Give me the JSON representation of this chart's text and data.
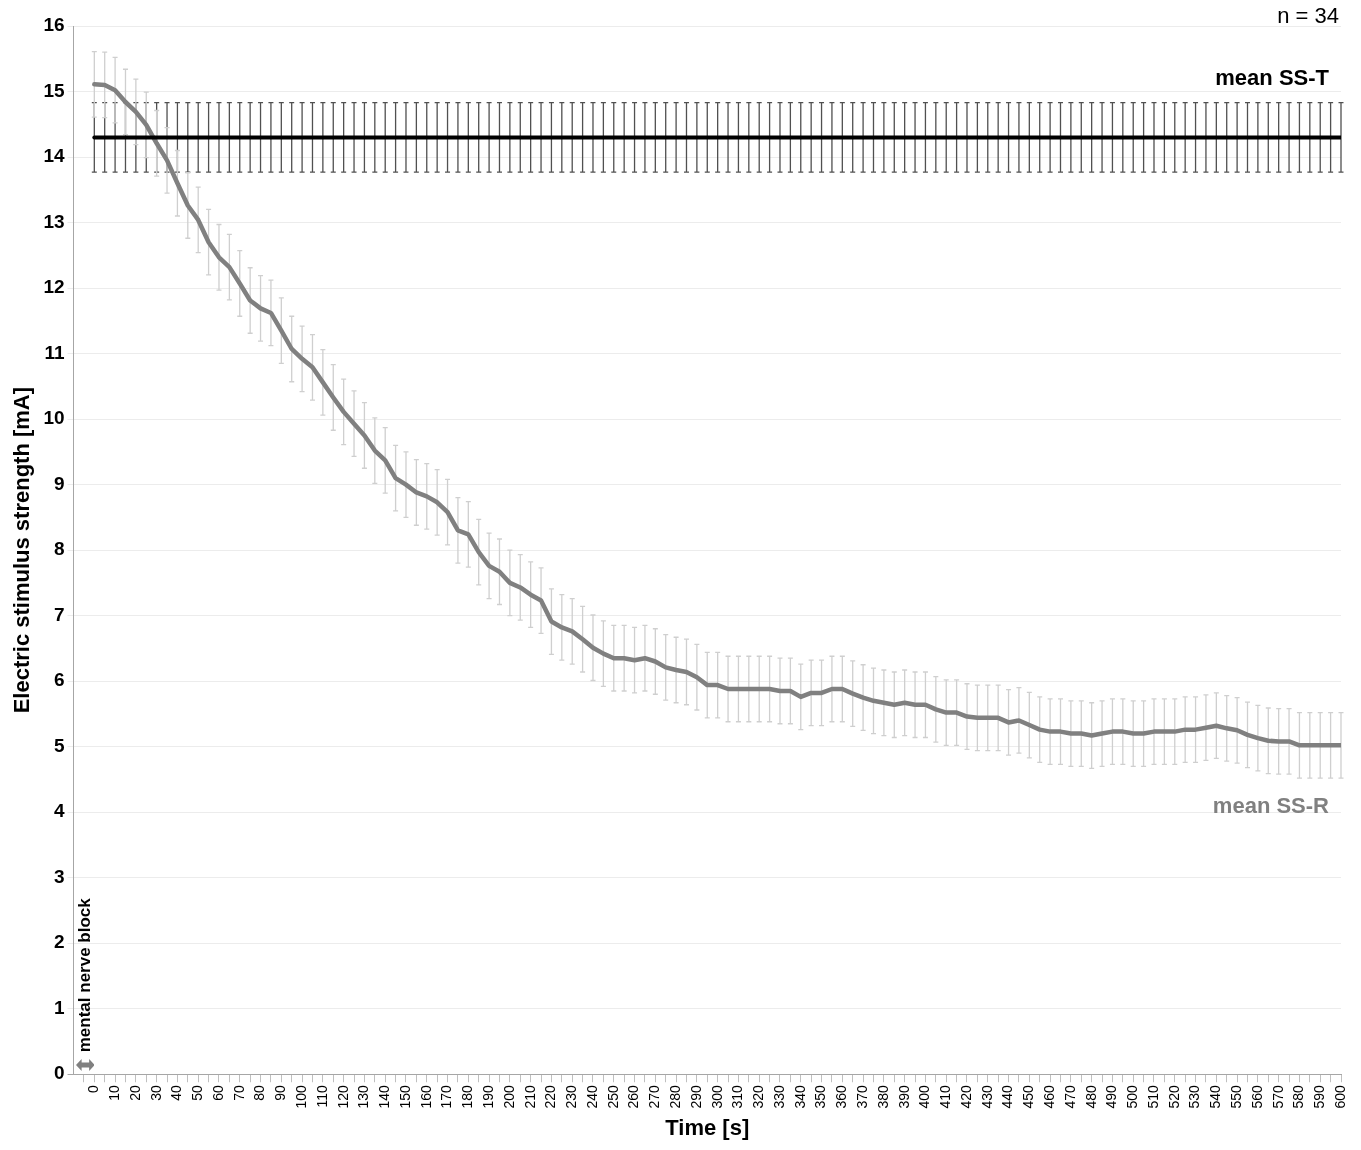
{
  "chart_data": {
    "type": "line",
    "xlabel": "Time [s]",
    "ylabel": "Electric stimulus strength [mA]",
    "annotations": [
      "n = 34",
      "mental nerve block"
    ],
    "x": [
      0,
      5,
      10,
      15,
      20,
      25,
      30,
      35,
      40,
      45,
      50,
      55,
      60,
      65,
      70,
      75,
      80,
      85,
      90,
      95,
      100,
      105,
      110,
      115,
      120,
      125,
      130,
      135,
      140,
      145,
      150,
      155,
      160,
      165,
      170,
      175,
      180,
      185,
      190,
      195,
      200,
      205,
      210,
      215,
      220,
      225,
      230,
      235,
      240,
      245,
      250,
      255,
      260,
      265,
      270,
      275,
      280,
      285,
      290,
      295,
      300,
      305,
      310,
      315,
      320,
      325,
      330,
      335,
      340,
      345,
      350,
      355,
      360,
      365,
      370,
      375,
      380,
      385,
      390,
      395,
      400,
      405,
      410,
      415,
      420,
      425,
      430,
      435,
      440,
      445,
      450,
      455,
      460,
      465,
      470,
      475,
      480,
      485,
      490,
      495,
      500,
      505,
      510,
      515,
      520,
      525,
      530,
      535,
      540,
      545,
      550,
      555,
      560,
      565,
      570,
      575,
      580,
      585,
      590,
      595,
      600
    ],
    "series": [
      {
        "name": "mean SS-T",
        "color": "#000000",
        "values": [
          14.3,
          14.3,
          14.3,
          14.3,
          14.3,
          14.3,
          14.3,
          14.3,
          14.3,
          14.3,
          14.3,
          14.3,
          14.3,
          14.3,
          14.3,
          14.3,
          14.3,
          14.3,
          14.3,
          14.3,
          14.3,
          14.3,
          14.3,
          14.3,
          14.3,
          14.3,
          14.3,
          14.3,
          14.3,
          14.3,
          14.3,
          14.3,
          14.3,
          14.3,
          14.3,
          14.3,
          14.3,
          14.3,
          14.3,
          14.3,
          14.3,
          14.3,
          14.3,
          14.3,
          14.3,
          14.3,
          14.3,
          14.3,
          14.3,
          14.3,
          14.3,
          14.3,
          14.3,
          14.3,
          14.3,
          14.3,
          14.3,
          14.3,
          14.3,
          14.3,
          14.3,
          14.3,
          14.3,
          14.3,
          14.3,
          14.3,
          14.3,
          14.3,
          14.3,
          14.3,
          14.3,
          14.3,
          14.3,
          14.3,
          14.3,
          14.3,
          14.3,
          14.3,
          14.3,
          14.3,
          14.3,
          14.3,
          14.3,
          14.3,
          14.3,
          14.3,
          14.3,
          14.3,
          14.3,
          14.3,
          14.3,
          14.3,
          14.3,
          14.3,
          14.3,
          14.3,
          14.3,
          14.3,
          14.3,
          14.3,
          14.3,
          14.3,
          14.3,
          14.3,
          14.3,
          14.3,
          14.3,
          14.3,
          14.3,
          14.3,
          14.3,
          14.3,
          14.3,
          14.3,
          14.3,
          14.3,
          14.3,
          14.3,
          14.3,
          14.3,
          14.3
        ],
        "errors": [
          0.53,
          0.53,
          0.53,
          0.53,
          0.53,
          0.53,
          0.53,
          0.53,
          0.53,
          0.53,
          0.53,
          0.53,
          0.53,
          0.53,
          0.53,
          0.53,
          0.53,
          0.53,
          0.53,
          0.53,
          0.53,
          0.53,
          0.53,
          0.53,
          0.53,
          0.53,
          0.53,
          0.53,
          0.53,
          0.53,
          0.53,
          0.53,
          0.53,
          0.53,
          0.53,
          0.53,
          0.53,
          0.53,
          0.53,
          0.53,
          0.53,
          0.53,
          0.53,
          0.53,
          0.53,
          0.53,
          0.53,
          0.53,
          0.53,
          0.53,
          0.53,
          0.53,
          0.53,
          0.53,
          0.53,
          0.53,
          0.53,
          0.53,
          0.53,
          0.53,
          0.53,
          0.53,
          0.53,
          0.53,
          0.53,
          0.53,
          0.53,
          0.53,
          0.53,
          0.53,
          0.53,
          0.53,
          0.53,
          0.53,
          0.53,
          0.53,
          0.53,
          0.53,
          0.53,
          0.53,
          0.53,
          0.53,
          0.53,
          0.53,
          0.53,
          0.53,
          0.53,
          0.53,
          0.53,
          0.53,
          0.53,
          0.53,
          0.53,
          0.53,
          0.53,
          0.53,
          0.53,
          0.53,
          0.53,
          0.53,
          0.53,
          0.53,
          0.53,
          0.53,
          0.53,
          0.53,
          0.53,
          0.53,
          0.53,
          0.53,
          0.53,
          0.53,
          0.53,
          0.53,
          0.53,
          0.53,
          0.53,
          0.53,
          0.53,
          0.53,
          0.53
        ]
      },
      {
        "name": "mean SS-R",
        "color": "#808080",
        "values": [
          15.11,
          15.1,
          15.02,
          14.84,
          14.69,
          14.49,
          14.21,
          13.95,
          13.6,
          13.26,
          13.04,
          12.7,
          12.47,
          12.32,
          12.07,
          11.81,
          11.69,
          11.62,
          11.35,
          11.07,
          10.92,
          10.79,
          10.56,
          10.33,
          10.11,
          9.93,
          9.75,
          9.52,
          9.37,
          9.1,
          9.0,
          8.88,
          8.82,
          8.73,
          8.58,
          8.3,
          8.24,
          7.97,
          7.76,
          7.67,
          7.5,
          7.43,
          7.32,
          7.23,
          6.91,
          6.82,
          6.76,
          6.64,
          6.51,
          6.42,
          6.35,
          6.35,
          6.32,
          6.35,
          6.3,
          6.21,
          6.17,
          6.14,
          6.06,
          5.94,
          5.94,
          5.88,
          5.88,
          5.88,
          5.88,
          5.88,
          5.85,
          5.85,
          5.76,
          5.82,
          5.82,
          5.88,
          5.88,
          5.81,
          5.75,
          5.7,
          5.67,
          5.64,
          5.67,
          5.64,
          5.64,
          5.57,
          5.52,
          5.52,
          5.46,
          5.44,
          5.44,
          5.44,
          5.37,
          5.4,
          5.33,
          5.26,
          5.23,
          5.23,
          5.2,
          5.2,
          5.17,
          5.2,
          5.23,
          5.23,
          5.2,
          5.2,
          5.23,
          5.23,
          5.23,
          5.26,
          5.26,
          5.29,
          5.32,
          5.28,
          5.25,
          5.18,
          5.13,
          5.09,
          5.08,
          5.08,
          5.02,
          5.02,
          5.02,
          5.02,
          5.02
        ],
        "errors": [
          0.5,
          0.5,
          0.5,
          0.5,
          0.5,
          0.5,
          0.5,
          0.5,
          0.5,
          0.5,
          0.5,
          0.5,
          0.5,
          0.5,
          0.5,
          0.5,
          0.5,
          0.5,
          0.5,
          0.5,
          0.5,
          0.5,
          0.5,
          0.5,
          0.5,
          0.5,
          0.5,
          0.5,
          0.5,
          0.5,
          0.5,
          0.5,
          0.5,
          0.5,
          0.5,
          0.5,
          0.5,
          0.5,
          0.5,
          0.5,
          0.5,
          0.5,
          0.5,
          0.5,
          0.5,
          0.5,
          0.5,
          0.5,
          0.5,
          0.5,
          0.5,
          0.5,
          0.5,
          0.5,
          0.5,
          0.5,
          0.5,
          0.5,
          0.5,
          0.5,
          0.5,
          0.5,
          0.5,
          0.5,
          0.5,
          0.5,
          0.5,
          0.5,
          0.5,
          0.5,
          0.5,
          0.5,
          0.5,
          0.5,
          0.5,
          0.5,
          0.5,
          0.5,
          0.5,
          0.5,
          0.5,
          0.5,
          0.5,
          0.5,
          0.5,
          0.5,
          0.5,
          0.5,
          0.5,
          0.5,
          0.5,
          0.5,
          0.5,
          0.5,
          0.5,
          0.5,
          0.5,
          0.5,
          0.5,
          0.5,
          0.5,
          0.5,
          0.5,
          0.5,
          0.5,
          0.5,
          0.5,
          0.5,
          0.5,
          0.5,
          0.5,
          0.5,
          0.5,
          0.5,
          0.5,
          0.5,
          0.5,
          0.5,
          0.5,
          0.5,
          0.5
        ]
      }
    ],
    "xlim": [
      -10,
      600
    ],
    "xticks": [
      {
        "value": -5,
        "label": null
      },
      0,
      {
        "value": 5,
        "label": null
      },
      10,
      {
        "value": 15,
        "label": null
      },
      20,
      {
        "value": 25,
        "label": null
      },
      30,
      {
        "value": 35,
        "label": null
      },
      40,
      {
        "value": 45,
        "label": null
      },
      50,
      {
        "value": 55,
        "label": null
      },
      60,
      {
        "value": 65,
        "label": null
      },
      70,
      {
        "value": 75,
        "label": null
      },
      80,
      {
        "value": 85,
        "label": null
      },
      90,
      {
        "value": 95,
        "label": null
      },
      100,
      {
        "value": 105,
        "label": null
      },
      110,
      {
        "value": 115,
        "label": null
      },
      120,
      {
        "value": 125,
        "label": null
      },
      130,
      {
        "value": 135,
        "label": null
      },
      140,
      {
        "value": 145,
        "label": null
      },
      150,
      {
        "value": 155,
        "label": null
      },
      160,
      {
        "value": 165,
        "label": null
      },
      170,
      {
        "value": 175,
        "label": null
      },
      180,
      {
        "value": 185,
        "label": null
      },
      190,
      {
        "value": 195,
        "label": null
      },
      200,
      {
        "value": 205,
        "label": null
      },
      210,
      {
        "value": 215,
        "label": null
      },
      220,
      {
        "value": 225,
        "label": null
      },
      230,
      {
        "value": 235,
        "label": null
      },
      240,
      {
        "value": 245,
        "label": null
      },
      250,
      {
        "value": 255,
        "label": null
      },
      260,
      {
        "value": 265,
        "label": null
      },
      270,
      {
        "value": 275,
        "label": null
      },
      280,
      {
        "value": 285,
        "label": null
      },
      290,
      {
        "value": 295,
        "label": null
      },
      300,
      {
        "value": 305,
        "label": null
      },
      310,
      {
        "value": 315,
        "label": null
      },
      320,
      {
        "value": 325,
        "label": null
      },
      330,
      {
        "value": 335,
        "label": null
      },
      340,
      {
        "value": 345,
        "label": null
      },
      350,
      {
        "value": 355,
        "label": null
      },
      360,
      {
        "value": 365,
        "label": null
      },
      370,
      {
        "value": 375,
        "label": null
      },
      380,
      {
        "value": 385,
        "label": null
      },
      390,
      {
        "value": 395,
        "label": null
      },
      400,
      {
        "value": 405,
        "label": null
      },
      410,
      {
        "value": 415,
        "label": null
      },
      420,
      {
        "value": 425,
        "label": null
      },
      430,
      {
        "value": 435,
        "label": null
      },
      440,
      {
        "value": 445,
        "label": null
      },
      450,
      {
        "value": 455,
        "label": null
      },
      460,
      {
        "value": 465,
        "label": null
      },
      470,
      {
        "value": 475,
        "label": null
      },
      480,
      {
        "value": 485,
        "label": null
      },
      490,
      {
        "value": 495,
        "label": null
      },
      500,
      {
        "value": 505,
        "label": null
      },
      510,
      {
        "value": 515,
        "label": null
      },
      520,
      {
        "value": 525,
        "label": null
      },
      530,
      {
        "value": 535,
        "label": null
      },
      540,
      {
        "value": 545,
        "label": null
      },
      550,
      {
        "value": 555,
        "label": null
      },
      560,
      {
        "value": 565,
        "label": null
      },
      570,
      {
        "value": 575,
        "label": null
      },
      580,
      {
        "value": 585,
        "label": null
      },
      590,
      {
        "value": 595,
        "label": null
      },
      600
    ],
    "ylim": [
      0,
      16
    ],
    "yticks": [
      0,
      1,
      2,
      3,
      4,
      5,
      6,
      7,
      8,
      9,
      10,
      11,
      12,
      13,
      14,
      15,
      16
    ],
    "grid": "y",
    "legend": false,
    "marker": "none",
    "line_style": "solid"
  }
}
